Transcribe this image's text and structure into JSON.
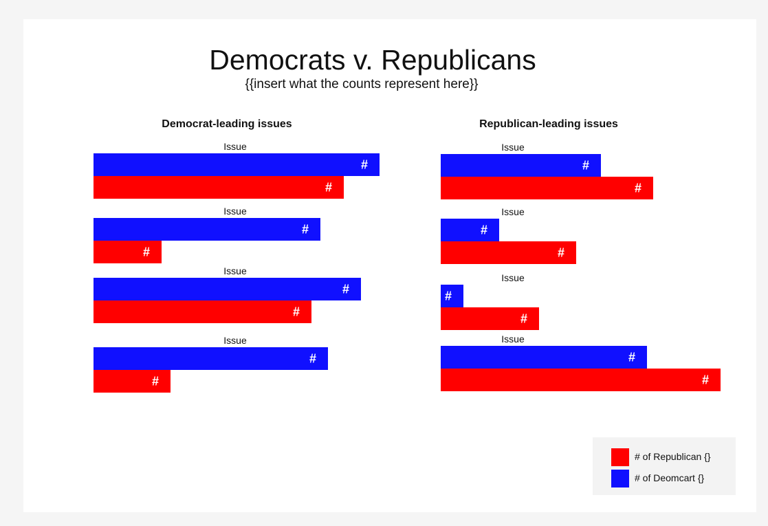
{
  "chart_data": {
    "type": "bar",
    "title": "Democrats v. Republicans",
    "subtitle": "{{insert what the counts represent here}}",
    "colors": {
      "republican": "#ff0000",
      "democrat": "#1010ff"
    },
    "legend": {
      "position": "bottom-right",
      "items": [
        {
          "label": "# of Republican {}",
          "color": "#ff0000"
        },
        {
          "label": "# of Deomcart {}",
          "color": "#1010ff"
        }
      ]
    },
    "panels": [
      {
        "title": "Democrat-leading issues",
        "categories": [
          "Issue",
          "Issue",
          "Issue",
          "Issue"
        ],
        "series": [
          {
            "name": "# of Deomcart {}",
            "values": [
              416,
              330,
              389,
              341
            ],
            "data_labels": [
              "#",
              "#",
              "#",
              "#"
            ]
          },
          {
            "name": "# of Republican {}",
            "values": [
              364,
              99,
              317,
              112
            ],
            "data_labels": [
              "#",
              "#",
              "#",
              "#"
            ]
          }
        ]
      },
      {
        "title": "Republican-leading issues",
        "categories": [
          "Issue",
          "Issue",
          "Issue",
          "Issue"
        ],
        "series": [
          {
            "name": "# of Deomcart {}",
            "values": [
              233,
              85,
              33,
              300
            ],
            "data_labels": [
              "#",
              "#",
              "#",
              "#"
            ]
          },
          {
            "name": "# of Republican {}",
            "values": [
              309,
              197,
              143,
              407
            ],
            "data_labels": [
              "#",
              "#",
              "#",
              "#"
            ]
          }
        ]
      }
    ]
  }
}
